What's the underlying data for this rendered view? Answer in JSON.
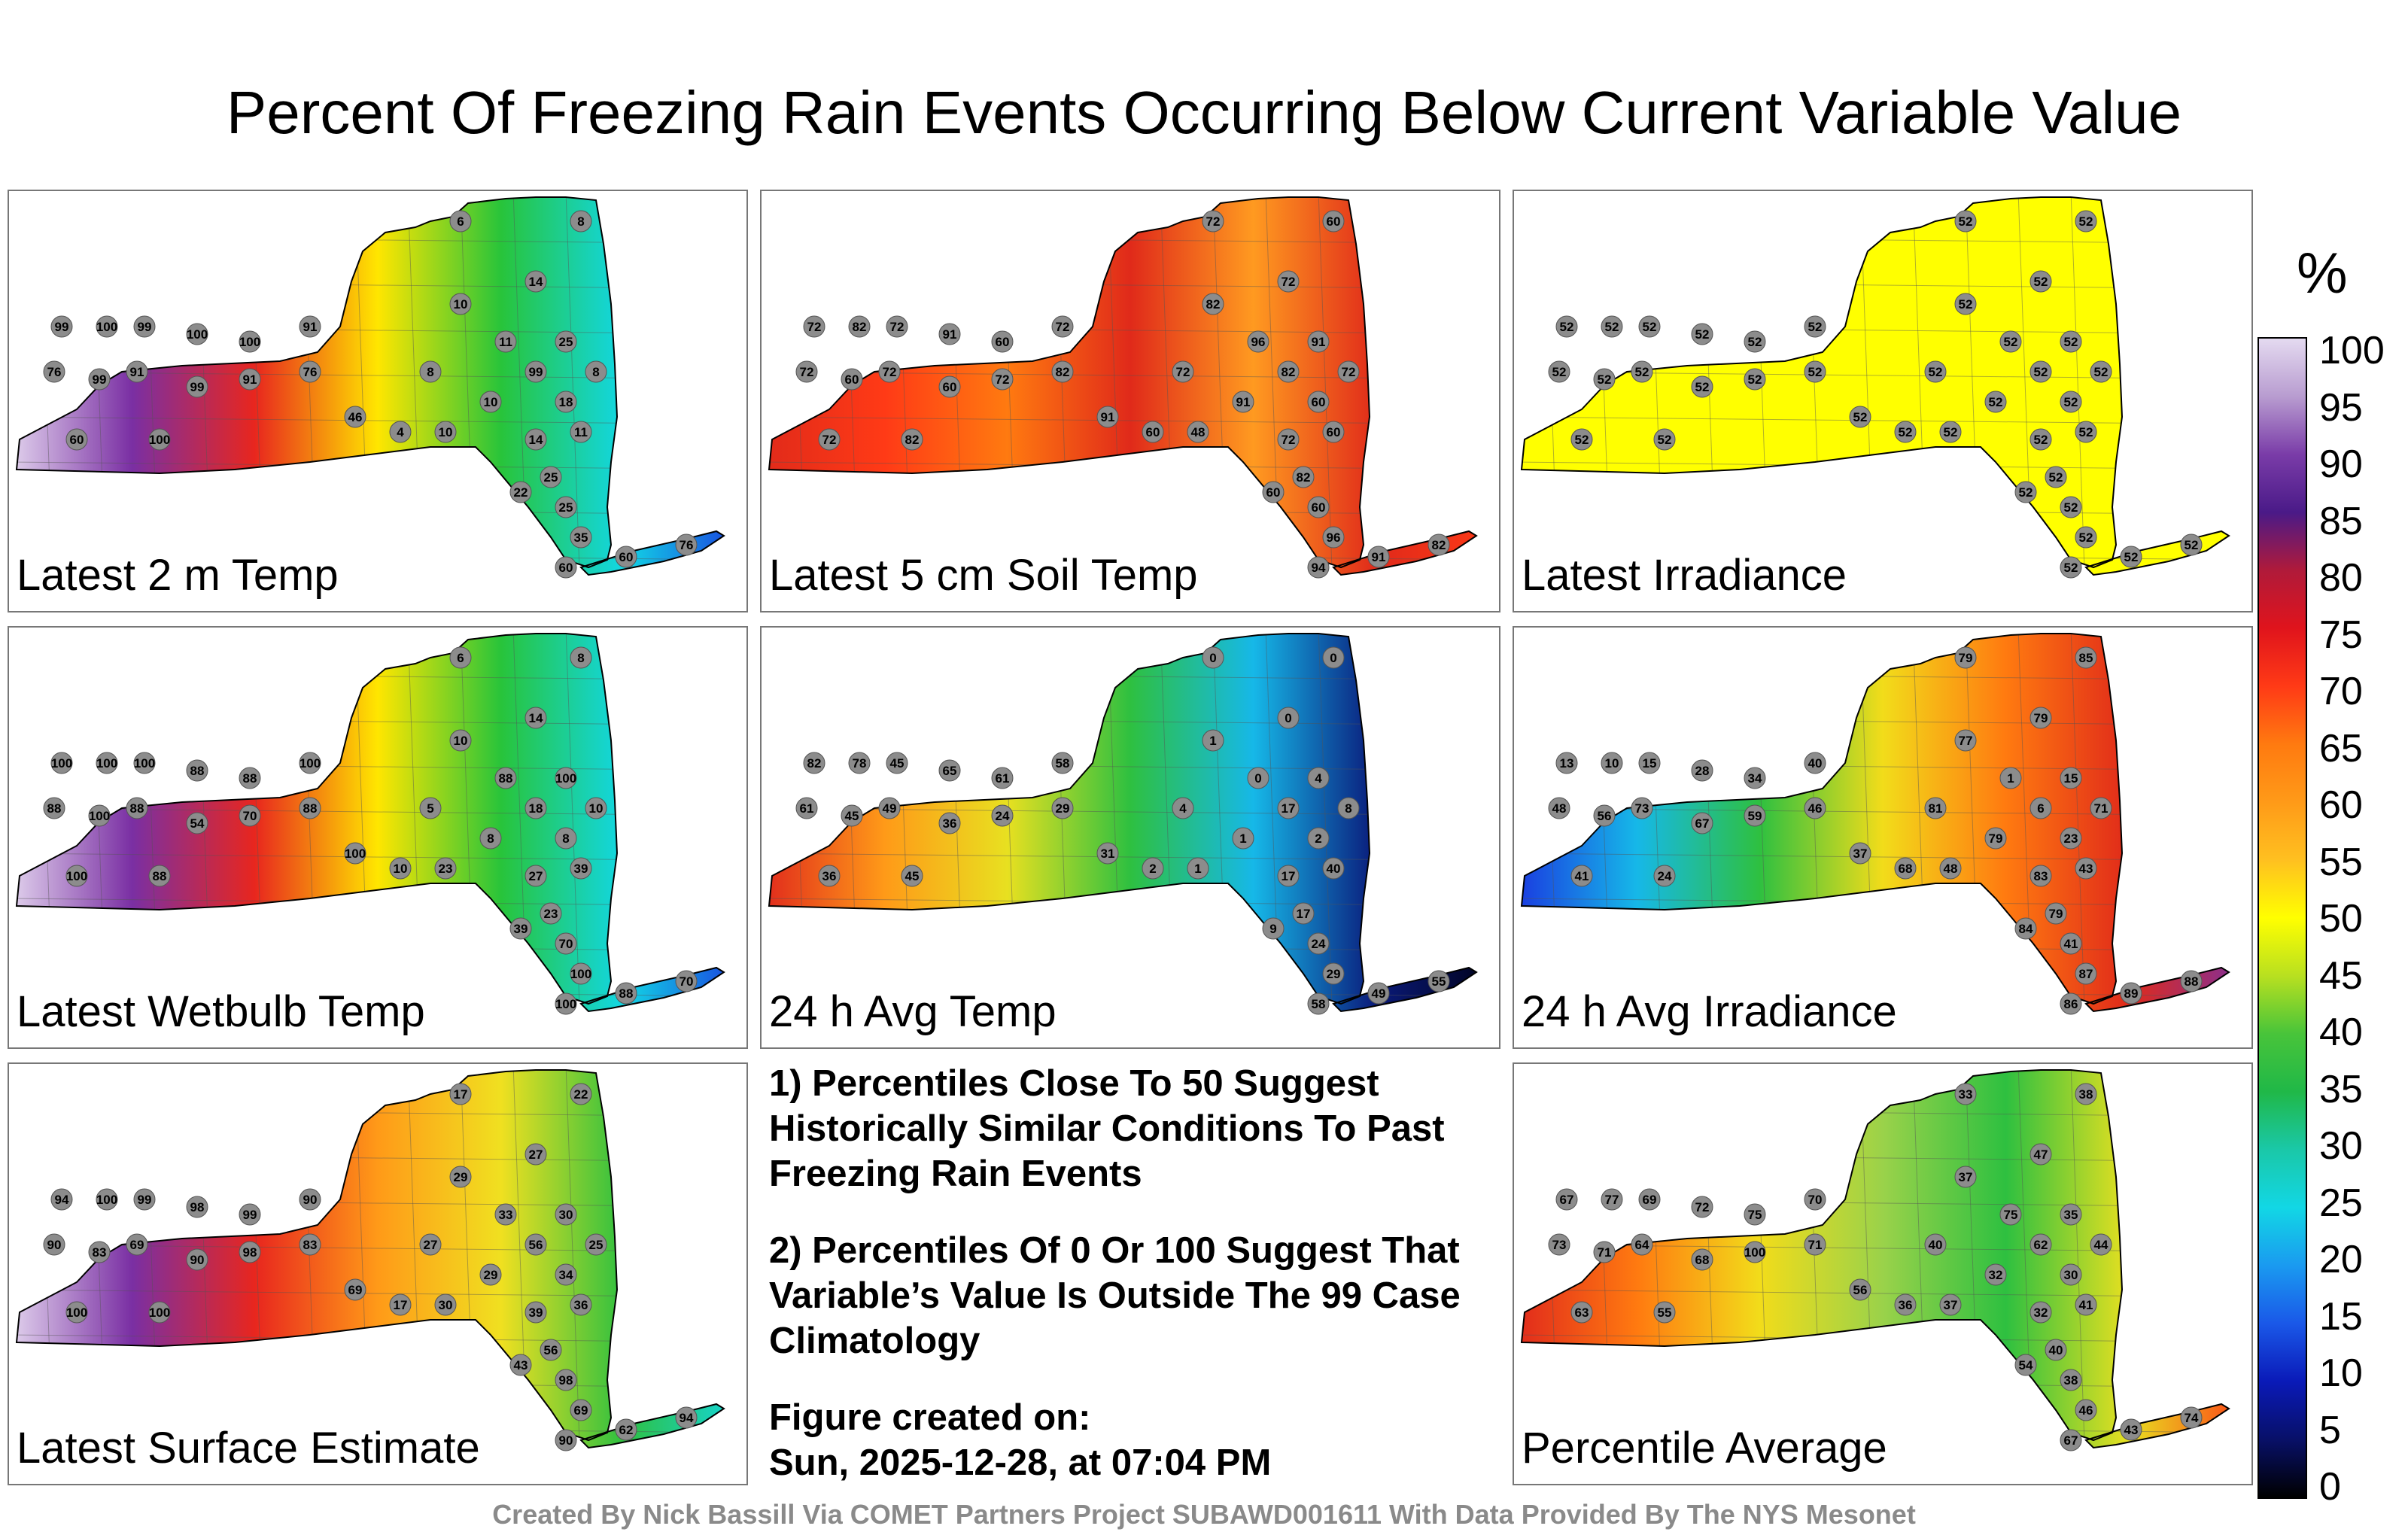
{
  "title": "Percent Of Freezing Rain Events Occurring Below Current Variable Value",
  "panels": [
    {
      "id": "p1",
      "label": "Latest 2 m Temp",
      "gradient": [
        "#e2d4ee",
        "#7a2fa3",
        "#e8261e",
        "#ffe600",
        "#28c43a",
        "#12d7e5",
        "#1a38e0"
      ],
      "east_values": [
        6,
        8,
        14,
        10,
        25,
        11,
        99,
        18,
        8,
        10,
        8,
        4,
        10,
        14,
        11,
        25,
        22,
        25,
        35,
        60,
        76,
        60
      ],
      "west_values": [
        99,
        100,
        99,
        100,
        100,
        91,
        76,
        99,
        91,
        99,
        91,
        76,
        46,
        60,
        100
      ]
    },
    {
      "id": "p2",
      "label": "Latest 5 cm Soil Temp",
      "gradient": [
        "#e02a1a",
        "#ff3a16",
        "#ff7a10",
        "#e02a1a",
        "#ff9a20",
        "#e02a1a",
        "#ff3a16"
      ],
      "east_values": [
        72,
        60,
        72,
        82,
        91,
        96,
        82,
        60,
        72,
        91,
        72,
        60,
        48,
        72,
        60,
        82,
        60,
        60,
        96,
        91,
        82,
        94
      ],
      "west_values": [
        72,
        82,
        72,
        91,
        60,
        72,
        72,
        60,
        72,
        60,
        72,
        82,
        91,
        72,
        82
      ]
    },
    {
      "id": "p3",
      "label": "Latest Irradiance",
      "gradient": [
        "#ffff00",
        "#ffff00",
        "#ffff00",
        "#ffff00",
        "#ffff00",
        "#ffff00",
        "#ffff00"
      ],
      "east_values": [
        52,
        52,
        52,
        52,
        52,
        52,
        52,
        52,
        52,
        52,
        52,
        52,
        52,
        52,
        52,
        52,
        52,
        52,
        52,
        52,
        52,
        52
      ],
      "west_values": [
        52,
        52,
        52,
        52,
        52,
        52,
        52,
        52,
        52,
        52,
        52,
        52,
        52,
        52,
        52
      ]
    },
    {
      "id": "p4",
      "label": "Latest Wetbulb Temp",
      "gradient": [
        "#e2d4ee",
        "#7a2fa3",
        "#e8261e",
        "#ffe600",
        "#28c43a",
        "#12d7e5",
        "#1a38e0"
      ],
      "east_values": [
        6,
        8,
        14,
        10,
        100,
        88,
        18,
        8,
        10,
        8,
        5,
        10,
        23,
        27,
        39,
        23,
        39,
        70,
        100,
        88,
        70,
        100
      ],
      "west_values": [
        100,
        100,
        100,
        88,
        88,
        100,
        88,
        100,
        88,
        54,
        70,
        88,
        100,
        100,
        88
      ]
    },
    {
      "id": "p5",
      "label": "24 h Avg Temp",
      "gradient": [
        "#e0281c",
        "#ff9a18",
        "#e8e020",
        "#2ec040",
        "#16b8e8",
        "#0a1a7a",
        "#000014"
      ],
      "east_values": [
        0,
        0,
        0,
        1,
        4,
        0,
        17,
        2,
        8,
        1,
        4,
        2,
        1,
        17,
        40,
        17,
        9,
        24,
        29,
        49,
        55,
        58
      ],
      "west_values": [
        82,
        78,
        45,
        65,
        61,
        58,
        61,
        45,
        49,
        36,
        24,
        29,
        31,
        36,
        45
      ]
    },
    {
      "id": "p6",
      "label": "24 h Avg Irradiance",
      "gradient": [
        "#1a38e0",
        "#16b8e8",
        "#2ec040",
        "#f2dc1a",
        "#ff7a10",
        "#e02a1a",
        "#7a2fa3"
      ],
      "east_values": [
        79,
        85,
        79,
        77,
        15,
        1,
        6,
        23,
        71,
        79,
        81,
        68,
        48,
        83,
        43,
        79,
        84,
        41,
        87,
        89,
        88,
        86
      ],
      "west_values": [
        13,
        10,
        15,
        28,
        34,
        40,
        48,
        56,
        73,
        67,
        59,
        46,
        37,
        41,
        24
      ]
    },
    {
      "id": "p7",
      "label": "Latest Surface Estimate",
      "gradient": [
        "#e2d4ee",
        "#7a2fa3",
        "#e8261e",
        "#ff9a18",
        "#f0e020",
        "#2ec040",
        "#12d7e5"
      ],
      "east_values": [
        17,
        22,
        27,
        29,
        30,
        33,
        56,
        34,
        25,
        29,
        27,
        17,
        30,
        39,
        36,
        56,
        43,
        98,
        69,
        62,
        94,
        90
      ],
      "west_values": [
        94,
        100,
        99,
        98,
        99,
        90,
        90,
        83,
        69,
        90,
        98,
        83,
        69,
        100,
        100
      ]
    },
    {
      "id": "p8",
      "label": "Percentile Average",
      "gradient": [
        "#e0281c",
        "#ff7a10",
        "#f2dc1a",
        "#9ad24a",
        "#2ec040",
        "#e8e020",
        "#ff3a16"
      ],
      "east_values": [
        33,
        38,
        47,
        37,
        35,
        75,
        62,
        30,
        44,
        32,
        40,
        36,
        37,
        32,
        41,
        40,
        54,
        38,
        46,
        43,
        74,
        67
      ],
      "west_values": [
        67,
        77,
        69,
        72,
        75,
        70,
        73,
        71,
        64,
        68,
        100,
        71,
        56,
        63,
        55
      ]
    }
  ],
  "notes": {
    "note1": "1) Percentiles Close To 50 Suggest Historically Similar Conditions To Past Freezing Rain Events",
    "note2": "2) Percentiles Of 0 Or 100 Suggest That Variable’s Value Is Outside The 99 Case Climatology",
    "created_heading": "Figure created on:",
    "created_date": "Sun, 2025-12-28, at 07:04 PM"
  },
  "colorbar": {
    "unit": "%",
    "ticks": [
      100,
      95,
      90,
      85,
      80,
      75,
      70,
      65,
      60,
      55,
      50,
      45,
      40,
      35,
      30,
      25,
      20,
      15,
      10,
      5,
      0
    ],
    "colors": [
      "#e4daf0",
      "#b89cd0",
      "#7a3ca8",
      "#4a1a88",
      "#b01a3a",
      "#e0141c",
      "#ff3a16",
      "#ff7a10",
      "#ff9a18",
      "#ffc020",
      "#ffff00",
      "#b8e020",
      "#48c43a",
      "#20b848",
      "#1ac8a8",
      "#12d7e5",
      "#1a9af0",
      "#1a58e8",
      "#0a1ab8",
      "#081068",
      "#000000"
    ]
  },
  "footer": "Created By Nick Bassill Via COMET Partners Project SUBAWD001611 With Data Provided By The NYS Mesonet"
}
